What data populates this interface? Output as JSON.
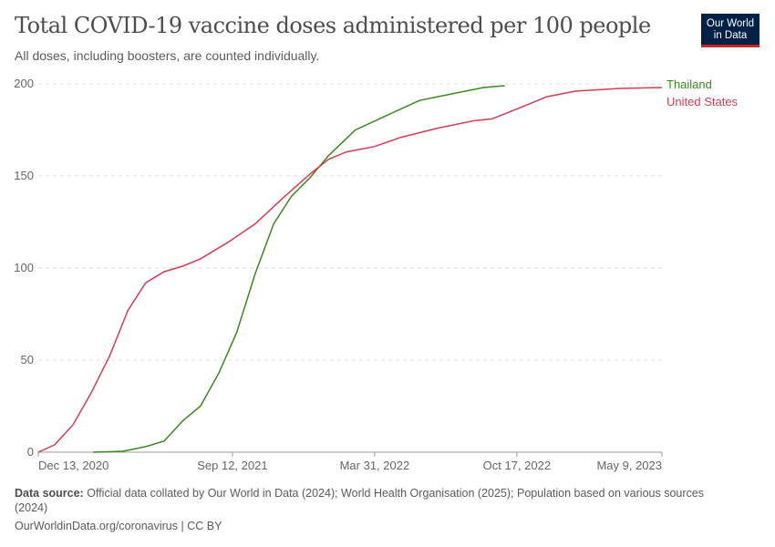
{
  "title": "Total COVID-19 vaccine doses administered per 100 people",
  "subtitle": "All doses, including boosters, are counted individually.",
  "logo": {
    "line1": "Our World",
    "line2": "in Data"
  },
  "footer": {
    "source_label": "Data source:",
    "source": "Official data collated by Our World in Data (2024); World Health Organisation (2025); Population based on various sources (2024)",
    "url": "OurWorldinData.org/coronavirus | CC BY"
  },
  "chart_data": {
    "type": "line",
    "title": "Total COVID-19 vaccine doses administered per 100 people",
    "ylim": [
      0,
      200
    ],
    "yticks": [
      0,
      50,
      100,
      150,
      200
    ],
    "xlim": [
      "2020-12-13",
      "2023-05-09"
    ],
    "xticks": [
      {
        "date": "2020-12-13",
        "label": "Dec 13, 2020"
      },
      {
        "date": "2021-09-12",
        "label": "Sep 12, 2021"
      },
      {
        "date": "2022-03-31",
        "label": "Mar 31, 2022"
      },
      {
        "date": "2022-10-17",
        "label": "Oct 17, 2022"
      },
      {
        "date": "2023-05-09",
        "label": "May 9, 2023"
      }
    ],
    "grid": "horizontal dashed",
    "legend": "inline-right",
    "series": [
      {
        "name": "Thailand",
        "color": "#3a8a1e",
        "points": [
          [
            "2021-02-28",
            0
          ],
          [
            "2021-04-11",
            0.5
          ],
          [
            "2021-05-13",
            3
          ],
          [
            "2021-06-08",
            6
          ],
          [
            "2021-07-04",
            17
          ],
          [
            "2021-07-29",
            25
          ],
          [
            "2021-08-24",
            43
          ],
          [
            "2021-09-18",
            65
          ],
          [
            "2021-10-14",
            97
          ],
          [
            "2021-11-09",
            124
          ],
          [
            "2021-12-04",
            139
          ],
          [
            "2021-12-30",
            149
          ],
          [
            "2022-01-25",
            161
          ],
          [
            "2022-03-04",
            175
          ],
          [
            "2022-04-12",
            182
          ],
          [
            "2022-06-02",
            191
          ],
          [
            "2022-07-23",
            195
          ],
          [
            "2022-08-31",
            198
          ],
          [
            "2022-09-30",
            199
          ]
        ]
      },
      {
        "name": "United States",
        "color": "#d73c50",
        "points": [
          [
            "2020-12-13",
            0
          ],
          [
            "2021-01-05",
            4
          ],
          [
            "2021-01-31",
            15
          ],
          [
            "2021-02-25",
            32
          ],
          [
            "2021-03-23",
            52
          ],
          [
            "2021-04-18",
            77
          ],
          [
            "2021-05-13",
            92
          ],
          [
            "2021-06-08",
            98
          ],
          [
            "2021-07-04",
            101
          ],
          [
            "2021-07-29",
            105
          ],
          [
            "2021-09-06",
            114
          ],
          [
            "2021-10-14",
            124
          ],
          [
            "2021-11-22",
            138
          ],
          [
            "2021-12-30",
            151
          ],
          [
            "2022-01-25",
            159
          ],
          [
            "2022-02-19",
            163
          ],
          [
            "2022-03-31",
            166
          ],
          [
            "2022-05-07",
            171
          ],
          [
            "2022-06-28",
            176
          ],
          [
            "2022-08-18",
            180
          ],
          [
            "2022-09-12",
            181
          ],
          [
            "2022-10-21",
            187
          ],
          [
            "2022-11-28",
            193
          ],
          [
            "2023-01-06",
            196
          ],
          [
            "2023-03-11",
            197.5
          ],
          [
            "2023-05-09",
            198
          ]
        ]
      }
    ]
  }
}
